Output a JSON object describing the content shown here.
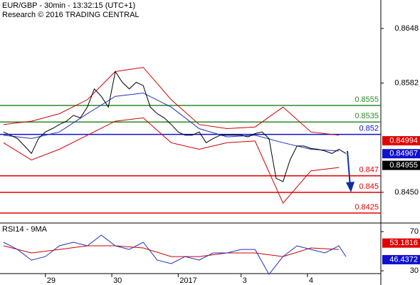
{
  "chart_data": [
    {
      "type": "line",
      "title": "EUR/GBP - 30min - 13:32:15 (UTC+1)",
      "subtitle": "Research © 2016 TRADING CENTRAL",
      "xlim": [
        -1,
        108
      ],
      "ylim": [
        0.84138,
        0.86824
      ],
      "yticks": [
        0.8648,
        0.8582,
        {
          "value": 0.845,
          "label": "0.8450"
        }
      ],
      "series": [
        {
          "color": "#d00000",
          "x": [
            0,
            8,
            16,
            24,
            32,
            40,
            48,
            56,
            64,
            72,
            80,
            88,
            96
          ],
          "values": [
            0.8532,
            0.8536,
            0.8545,
            0.8562,
            0.8596,
            0.8601,
            0.8562,
            0.8532,
            0.8527,
            0.8529,
            0.8553,
            0.8523,
            0.8519
          ]
        },
        {
          "color": "#d00000",
          "x": [
            0,
            8,
            16,
            24,
            32,
            40,
            48,
            56,
            64,
            72,
            80,
            88,
            96
          ],
          "values": [
            0.851,
            0.8489,
            0.8502,
            0.8519,
            0.8536,
            0.854,
            0.851,
            0.8502,
            0.851,
            0.8512,
            0.8437,
            0.8476,
            0.848
          ]
        },
        {
          "color": "#2030c0",
          "x": [
            0,
            8,
            16,
            24,
            32,
            40,
            48,
            56,
            64,
            72,
            80,
            88,
            96
          ],
          "values": [
            0.8519,
            0.8515,
            0.8523,
            0.8545,
            0.8566,
            0.857,
            0.8553,
            0.8527,
            0.8517,
            0.8519,
            0.851,
            0.8502,
            0.85
          ]
        },
        {
          "color": "#000000",
          "x": [
            0,
            2,
            4,
            6,
            8,
            10,
            12,
            14,
            16,
            18,
            20,
            22,
            24,
            26,
            28,
            30,
            32,
            34,
            36,
            38,
            40,
            42,
            44,
            46,
            48,
            50,
            52,
            54,
            56,
            58,
            60,
            62,
            64,
            66,
            68,
            70,
            72,
            74,
            76,
            78,
            80,
            82,
            84,
            86,
            88,
            90,
            92,
            94,
            96,
            98
          ],
          "values": [
            0.8523,
            0.8519,
            0.8515,
            0.8506,
            0.8497,
            0.8515,
            0.8523,
            0.8527,
            0.8532,
            0.8536,
            0.8543,
            0.854,
            0.8553,
            0.8575,
            0.8566,
            0.8553,
            0.8596,
            0.8583,
            0.8575,
            0.8583,
            0.8579,
            0.8553,
            0.8545,
            0.854,
            0.8532,
            0.8523,
            0.8519,
            0.8519,
            0.8523,
            0.851,
            0.8515,
            0.8519,
            0.8519,
            0.8519,
            0.8519,
            0.8517,
            0.8521,
            0.8523,
            0.8515,
            0.8467,
            0.8463,
            0.8489,
            0.8506,
            0.8506,
            0.8503,
            0.8502,
            0.85,
            0.8497,
            0.8502,
            0.8497
          ]
        }
      ],
      "levels": [
        {
          "value": 0.8555,
          "color": "#2a8a2a"
        },
        {
          "value": 0.8535,
          "color": "#2a8a2a"
        },
        {
          "value": 0.852,
          "color": "#1010d0"
        },
        {
          "value": 0.847,
          "color": "#e00000"
        },
        {
          "value": 0.845,
          "color": "#e00000"
        },
        {
          "value": 0.8425,
          "color": "#e00000"
        }
      ],
      "markers": [
        {
          "value": 0.84994,
          "color": "#e00000"
        },
        {
          "value": 0.84967,
          "color": "#1010d0"
        },
        {
          "value": 0.84955,
          "color": "#000000"
        }
      ]
    },
    {
      "type": "line",
      "title": "RSI14 - 9MA",
      "xlim": [
        -1,
        108
      ],
      "ylim": [
        15.5,
        77.3
      ],
      "yticks": [
        70,
        30
      ],
      "xticks": [
        {
          "value": 12,
          "label": "29"
        },
        {
          "value": 31,
          "label": "30"
        },
        {
          "value": 50,
          "label": "2017"
        },
        {
          "value": 68,
          "label": "3"
        },
        {
          "value": 87,
          "label": "4"
        }
      ],
      "series": [
        {
          "color": "#d00000",
          "x": [
            0,
            8,
            16,
            24,
            32,
            40,
            48,
            56,
            64,
            72,
            80,
            88,
            96
          ],
          "values": [
            55.5,
            48.2,
            51.8,
            55.5,
            55.5,
            53.3,
            44.5,
            44.5,
            48.2,
            48.2,
            44.5,
            53.3,
            51.8
          ]
        },
        {
          "color": "#2030c0",
          "x": [
            0,
            4,
            8,
            12,
            16,
            20,
            24,
            28,
            32,
            36,
            40,
            44,
            48,
            52,
            56,
            60,
            64,
            68,
            72,
            76,
            80,
            84,
            88,
            92,
            96,
            98
          ],
          "values": [
            59.1,
            51.8,
            40.9,
            44.5,
            55.5,
            59.1,
            55.5,
            66.4,
            55.5,
            51.8,
            59.1,
            40.9,
            37.3,
            44.5,
            40.9,
            48.2,
            48.2,
            51.8,
            51.8,
            26.4,
            44.5,
            55.5,
            51.8,
            48.2,
            55.5,
            44.5
          ]
        }
      ],
      "markers": [
        {
          "value": 53.1816,
          "color": "#e00000"
        },
        {
          "value": 46.4372,
          "color": "#1010d0"
        }
      ]
    }
  ]
}
